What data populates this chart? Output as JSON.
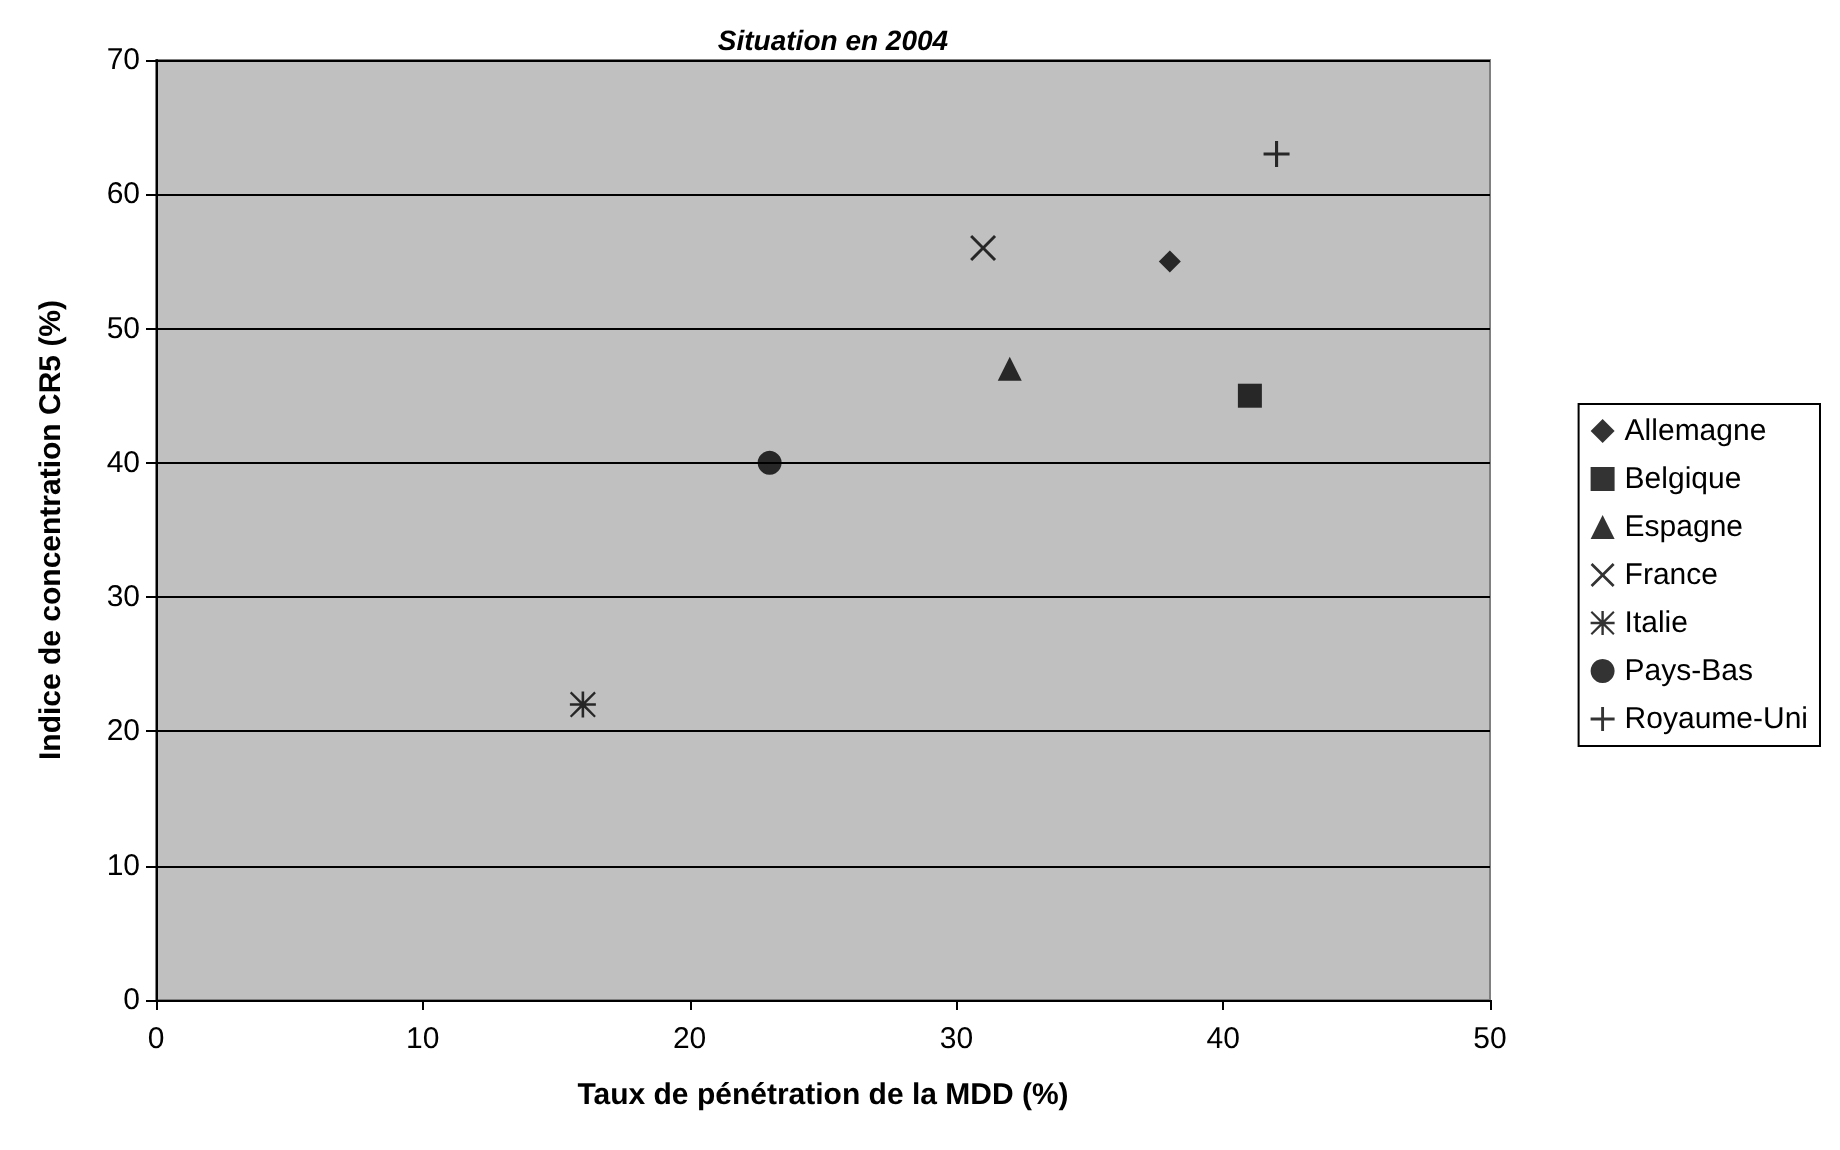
{
  "chart_data": {
    "type": "scatter",
    "title": "Situation en 2004",
    "xlabel": "Taux de pénétration de la MDD (%)",
    "ylabel": "Indice de concentration CR5 (%)",
    "xlim": [
      0,
      50
    ],
    "xticks": [
      0,
      10,
      20,
      30,
      40,
      50
    ],
    "ylim": [
      0,
      70
    ],
    "yticks": [
      0,
      10,
      20,
      30,
      40,
      50,
      60,
      70
    ],
    "grid": "y",
    "legend": "right",
    "series": [
      {
        "name": "Allemagne",
        "color": "#000000",
        "marker": "diamond",
        "x": [
          38
        ],
        "values": [
          55
        ]
      },
      {
        "name": "Belgique",
        "color": "#000000",
        "marker": "square",
        "x": [
          41
        ],
        "values": [
          45
        ]
      },
      {
        "name": "Espagne",
        "color": "#000000",
        "marker": "triangle",
        "x": [
          32
        ],
        "values": [
          47
        ]
      },
      {
        "name": "France",
        "color": "#000000",
        "marker": "cross",
        "x": [
          31
        ],
        "values": [
          56
        ]
      },
      {
        "name": "Italie",
        "color": "#000000",
        "marker": "star",
        "x": [
          16
        ],
        "values": [
          22
        ]
      },
      {
        "name": "Pays-Bas",
        "color": "#000000",
        "marker": "circle",
        "x": [
          23
        ],
        "values": [
          40
        ]
      },
      {
        "name": "Royaume-Uni",
        "color": "#000000",
        "marker": "plus",
        "x": [
          42
        ],
        "values": [
          63
        ]
      }
    ]
  }
}
